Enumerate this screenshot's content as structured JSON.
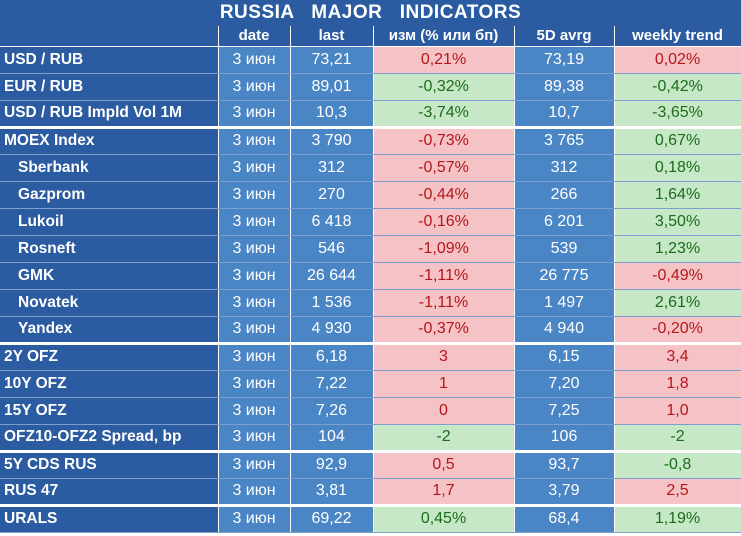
{
  "title": "RUSSIA   MAJOR   INDICATORS",
  "headers": {
    "name": "",
    "date": "date",
    "last": "last",
    "change": "изм (% или бп)",
    "avg": "5D avrg",
    "trend": "weekly trend"
  },
  "colors": {
    "header_bg": "#2b5ba0",
    "cell_bg": "#4a86c5",
    "positive_bg": "#c6e8c6",
    "positive_text": "#1b6b1b",
    "negative_bg": "#f5c3c5",
    "negative_text": "#b5161b"
  },
  "rows": [
    {
      "name": "USD / RUB",
      "date": "3 июн",
      "last": "73,21",
      "change": "0,21%",
      "avg": "73,19",
      "trend": "0,02%"
    },
    {
      "name": "EUR / RUB",
      "date": "3 июн",
      "last": "89,01",
      "change": "-0,32%",
      "avg": "89,38",
      "trend": "-0,42%"
    },
    {
      "name": "USD / RUB Impld Vol 1M",
      "date": "3 июн",
      "last": "10,3",
      "change": "-3,74%",
      "avg": "10,7",
      "trend": "-3,65%"
    },
    {
      "name": "MOEX Index",
      "date": "3 июн",
      "last": "3 790",
      "change": "-0,73%",
      "avg": "3 765",
      "trend": "0,67%"
    },
    {
      "name": "Sberbank",
      "date": "3 июн",
      "last": "312",
      "change": "-0,57%",
      "avg": "312",
      "trend": "0,18%"
    },
    {
      "name": "Gazprom",
      "date": "3 июн",
      "last": "270",
      "change": "-0,44%",
      "avg": "266",
      "trend": "1,64%"
    },
    {
      "name": "Lukoil",
      "date": "3 июн",
      "last": "6 418",
      "change": "-0,16%",
      "avg": "6 201",
      "trend": "3,50%"
    },
    {
      "name": "Rosneft",
      "date": "3 июн",
      "last": "546",
      "change": "-1,09%",
      "avg": "539",
      "trend": "1,23%"
    },
    {
      "name": "GMK",
      "date": "3 июн",
      "last": "26 644",
      "change": "-1,11%",
      "avg": "26 775",
      "trend": "-0,49%"
    },
    {
      "name": "Novatek",
      "date": "3 июн",
      "last": "1 536",
      "change": "-1,11%",
      "avg": "1 497",
      "trend": "2,61%"
    },
    {
      "name": "Yandex",
      "date": "3 июн",
      "last": "4 930",
      "change": "-0,37%",
      "avg": "4 940",
      "trend": "-0,20%"
    },
    {
      "name": "2Y OFZ",
      "date": "3 июн",
      "last": "6,18",
      "change": "3",
      "avg": "6,15",
      "trend": "3,4"
    },
    {
      "name": "10Y OFZ",
      "date": "3 июн",
      "last": "7,22",
      "change": "1",
      "avg": "7,20",
      "trend": "1,8"
    },
    {
      "name": "15Y OFZ",
      "date": "3 июн",
      "last": "7,26",
      "change": "0",
      "avg": "7,25",
      "trend": "1,0"
    },
    {
      "name": "OFZ10-OFZ2 Spread, bp",
      "date": "3 июн",
      "last": "104",
      "change": "-2",
      "avg": "106",
      "trend": "-2"
    },
    {
      "name": "5Y CDS RUS",
      "date": "3 июн",
      "last": "92,9",
      "change": "0,5",
      "avg": "93,7",
      "trend": "-0,8"
    },
    {
      "name": "RUS 47",
      "date": "3 июн",
      "last": "3,81",
      "change": "1,7",
      "avg": "3,79",
      "trend": "2,5"
    },
    {
      "name": "URALS",
      "date": "3 июн",
      "last": "69,22",
      "change": "0,45%",
      "avg": "68,4",
      "trend": "1,19%"
    }
  ]
}
